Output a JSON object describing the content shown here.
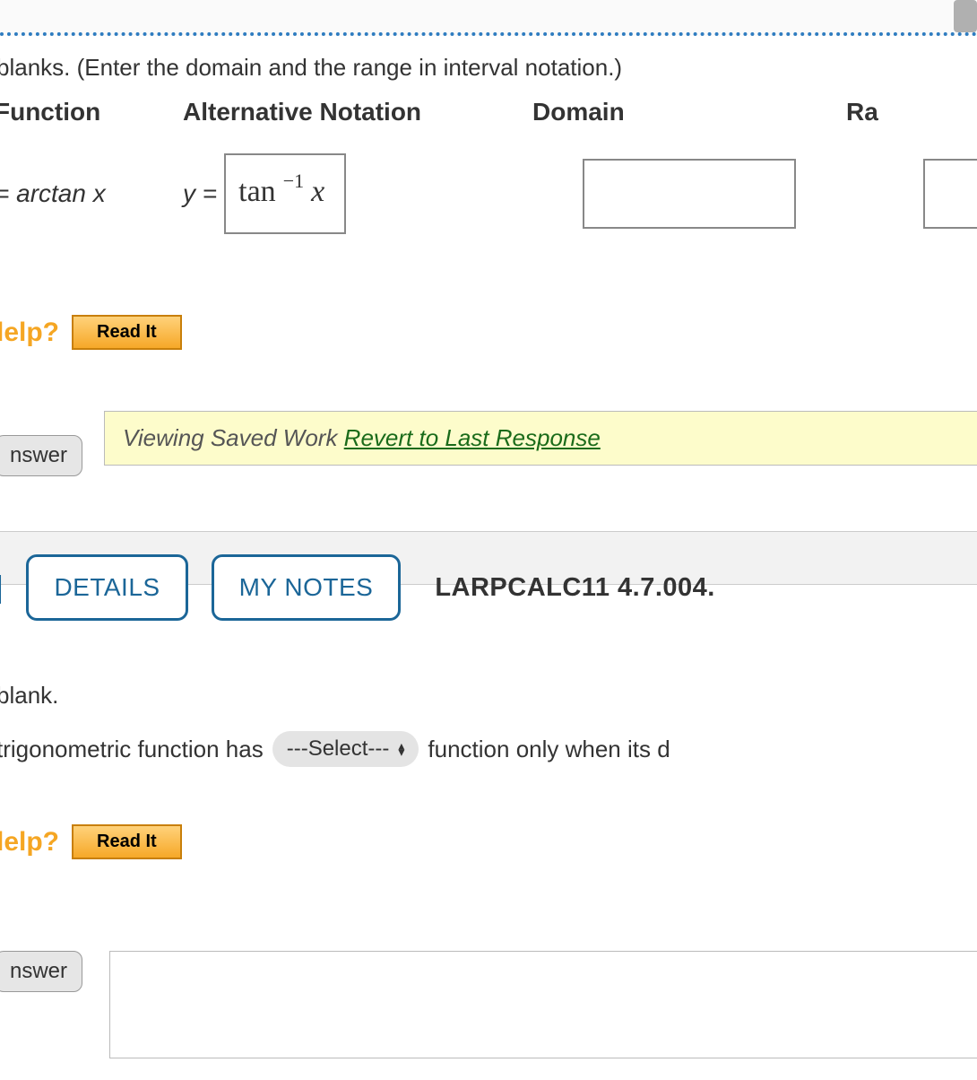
{
  "q1": {
    "instruction": "blanks. (Enter the domain and the range in interval notation.)",
    "headers": {
      "function": "Function",
      "alternative": "Alternative Notation",
      "domain": "Domain",
      "range": "Ra"
    },
    "function_label": "= arctan x",
    "alt_prefix": "y =",
    "alt_content": {
      "base": "tan",
      "sup_num": "−1",
      "sup_den": "",
      "var": "x"
    },
    "domain_value": "",
    "range_value": ""
  },
  "help": {
    "label": "lelp?",
    "button": "Read It"
  },
  "saved": {
    "answer_tab": "nswer",
    "banner_text": "Viewing Saved Work ",
    "revert_link": "Revert to Last Response"
  },
  "q2": {
    "bracket": "]",
    "details": "DETAILS",
    "mynotes": "MY NOTES",
    "ref": "LARPCALC11 4.7.004.",
    "blank": "blank.",
    "trig_before": "trigonometric function has",
    "select_label": "---Select---",
    "trig_after": "function only when its d"
  },
  "colors": {
    "accent_blue": "#1b6698",
    "help_orange": "#f5a623",
    "banner_bg": "#fdfccb",
    "link_green": "#1a6b1a",
    "dotted": "#2e7cc0"
  }
}
